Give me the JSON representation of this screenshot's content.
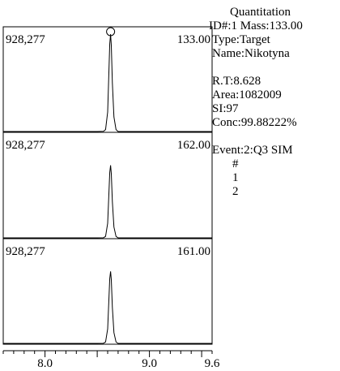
{
  "chart_data": [
    {
      "type": "line",
      "panel_label": "928,277",
      "mass_label": "133.00",
      "marker": "circle",
      "x": [
        7.6,
        8.5,
        8.56,
        8.58,
        8.6,
        8.61,
        8.62,
        8.628,
        8.635,
        8.645,
        8.66,
        8.68,
        8.7,
        9.6
      ],
      "y": [
        0,
        0,
        0.002,
        0.02,
        0.2,
        0.55,
        0.9,
        1.0,
        0.88,
        0.5,
        0.15,
        0.02,
        0,
        0
      ]
    },
    {
      "type": "line",
      "panel_label": "928,277",
      "mass_label": "162.00",
      "x": [
        7.6,
        8.5,
        8.56,
        8.58,
        8.6,
        8.61,
        8.62,
        8.628,
        8.635,
        8.645,
        8.66,
        8.68,
        8.7,
        9.6
      ],
      "y": [
        0,
        0,
        0.002,
        0.02,
        0.2,
        0.55,
        0.9,
        1.0,
        0.88,
        0.5,
        0.15,
        0.02,
        0,
        0
      ],
      "peak_fraction": 0.69
    },
    {
      "type": "line",
      "panel_label": "928,277",
      "mass_label": "161.00",
      "x": [
        7.6,
        8.5,
        8.56,
        8.58,
        8.6,
        8.61,
        8.62,
        8.628,
        8.635,
        8.645,
        8.66,
        8.68,
        8.7,
        9.6
      ],
      "y": [
        0,
        0,
        0.002,
        0.02,
        0.2,
        0.55,
        0.9,
        1.0,
        0.88,
        0.5,
        0.15,
        0.02,
        0,
        0
      ],
      "peak_fraction": 0.69
    }
  ],
  "axis": {
    "xlim": [
      7.6,
      9.6
    ],
    "tick_labels": [
      {
        "value": 8.0,
        "label": "8.0"
      },
      {
        "value": 9.0,
        "label": "9.0"
      },
      {
        "value": 9.6,
        "label": "9.6"
      }
    ],
    "minor_step": 0.1
  },
  "info": {
    "title": "Quantitation",
    "id_line": "ID#:1   Mass:133.00",
    "type_line": "Type:Target",
    "name_line": "Name:Nikotyna",
    "rt_line": "R.T:8.628",
    "area_line": "Area:1082009",
    "si_line": "SI:97",
    "conc_line": "Conc:99.88222%",
    "event_line": "Event:2:Q3 SIM",
    "col_header": "#",
    "rows": [
      "1",
      "2"
    ]
  }
}
